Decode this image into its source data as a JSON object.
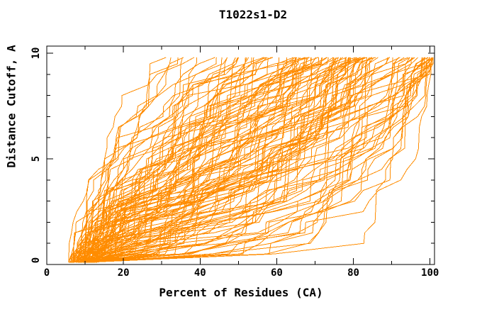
{
  "colors": {
    "curve": "#ff8c00",
    "axis": "#000000",
    "background": "#ffffff",
    "text": "#000000"
  },
  "chart_data": {
    "type": "line",
    "title": "T1022s1-D2",
    "xlabel": "Percent of Residues (CA)",
    "ylabel": "Distance Cutoff, A",
    "xlim": [
      0,
      101.2
    ],
    "ylim": [
      0,
      10.33
    ],
    "x_major_ticks": [
      0,
      20,
      40,
      60,
      80,
      100
    ],
    "x_minor_ticks": [
      10,
      30,
      50,
      70,
      90
    ],
    "y_major_ticks": [
      0,
      5,
      10
    ],
    "y_minor_ticks": [
      1,
      2,
      3,
      4,
      6,
      7,
      8,
      9
    ],
    "grid": false,
    "legend": null,
    "series_color": "#ff8c00",
    "series_description": "Approximately 130 cumulative GDT traces (one per predicted model); each is a monotonically increasing jagged polyline of percent of CA residues (x) fitting under each distance cutoff in Angstroms (y), rising from ~6-13% at cutoff 0.1 to tops near cutoff 9.8 at 28-100%.",
    "curve_generator": {
      "n_curves": 130,
      "seed": 42,
      "cutoff_start": 0.1,
      "cutoff_step": 0.5,
      "cutoff_max": 9.8,
      "x_start_min": 5.5,
      "x_start_max": 13,
      "x_end_min": 28,
      "x_end_max": 100.8,
      "end_power": 0.8,
      "end_jitter_lo": 0.93,
      "end_jitter_span": 0.14,
      "quality_skew": 1.8,
      "gamma_best": 0.22,
      "gamma_worst": 1.9,
      "gamma_power": 1.15,
      "flat_step_prob": 0.3,
      "flat_step_weight": 0.03,
      "step_weight_base": 0.15,
      "step_weight_span": 2.4,
      "step_weight_power": 1.8
    }
  }
}
